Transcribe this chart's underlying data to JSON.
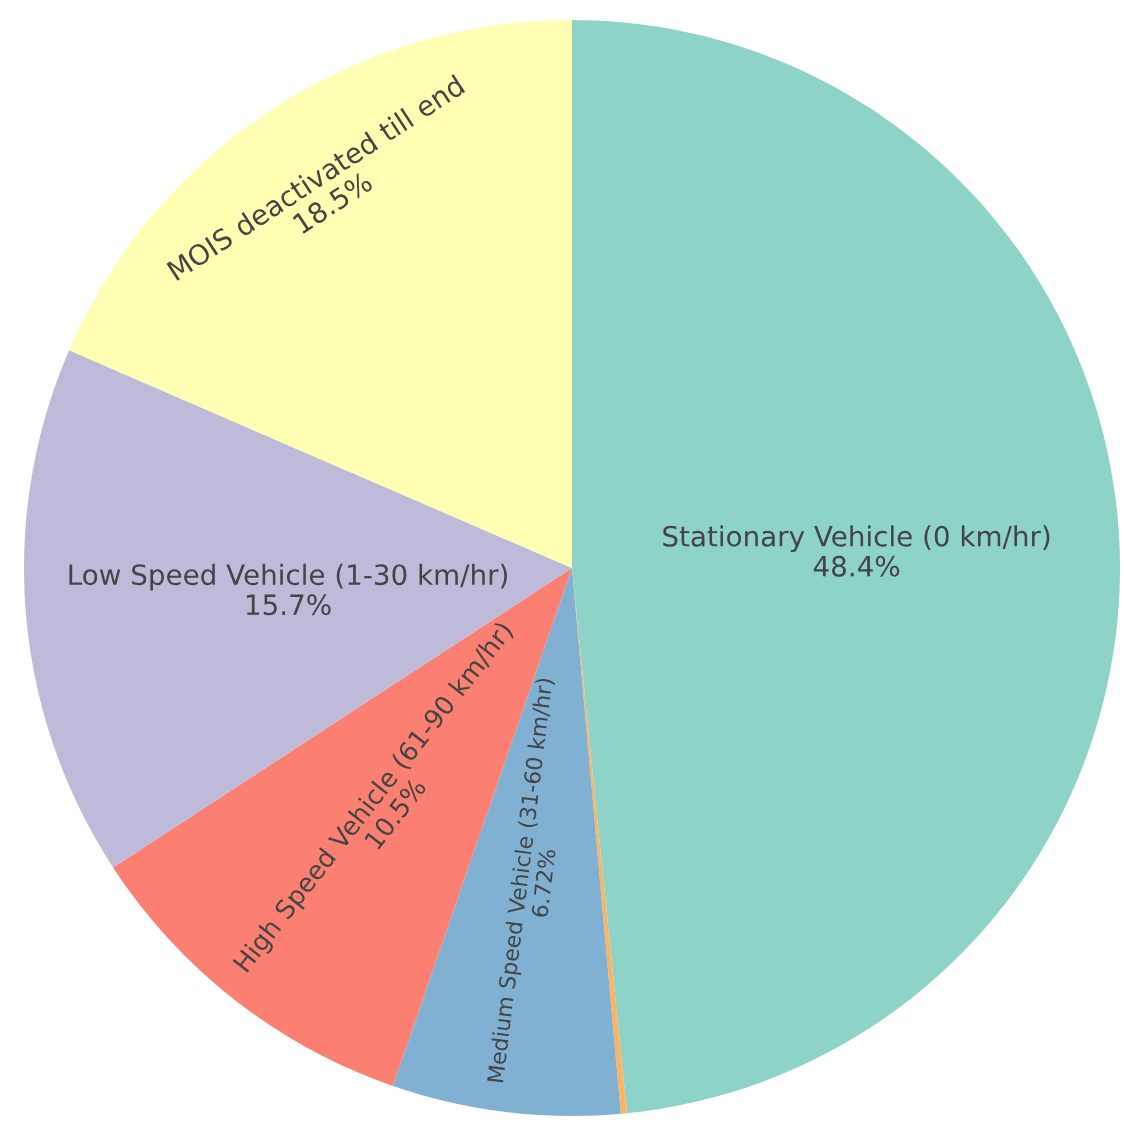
{
  "chart_data": {
    "type": "pie",
    "categories": [
      "Stationary Vehicle (0 km/hr)",
      null,
      "Medium Speed Vehicle (31-60 km/hr)",
      "High Speed Vehicle (61-90 km/hr)",
      "Low Speed Vehicle (1-30 km/hr)",
      "MOIS deactivated till end"
    ],
    "values": [
      48.4,
      0.18,
      6.72,
      10.5,
      15.7,
      18.5
    ],
    "value_labels": [
      "48.4%",
      null,
      "6.72%",
      "10.5%",
      "15.7%",
      "18.5%"
    ],
    "colors": [
      "#8dd3c7",
      "#fdb462",
      "#80b1d3",
      "#fb8072",
      "#bebada",
      "#ffffb3"
    ]
  }
}
